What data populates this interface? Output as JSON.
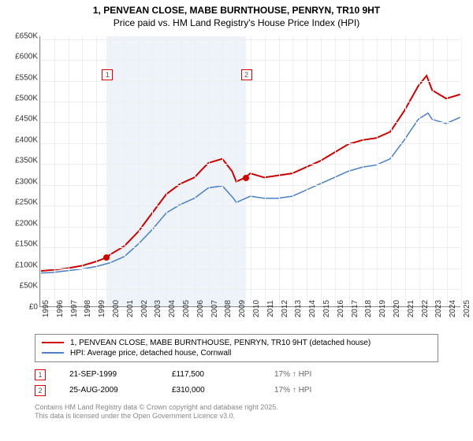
{
  "title": "1, PENVEAN CLOSE, MABE BURNTHOUSE, PENRYN, TR10 9HT",
  "subtitle": "Price paid vs. HM Land Registry's House Price Index (HPI)",
  "chart": {
    "type": "line",
    "background_color": "#ffffff",
    "grid_color": "#eeeeee",
    "shade_color": "#e6eef7",
    "ylim": [
      0,
      650000
    ],
    "ytick_step": 50000,
    "yticks": [
      "£0",
      "£50K",
      "£100K",
      "£150K",
      "£200K",
      "£250K",
      "£300K",
      "£350K",
      "£400K",
      "£450K",
      "£500K",
      "£550K",
      "£600K",
      "£650K"
    ],
    "x_min": 1995,
    "x_max": 2025,
    "xticks": [
      1995,
      1996,
      1997,
      1998,
      1999,
      2000,
      2001,
      2002,
      2003,
      2004,
      2005,
      2006,
      2007,
      2008,
      2009,
      2010,
      2011,
      2012,
      2013,
      2014,
      2015,
      2016,
      2017,
      2018,
      2019,
      2020,
      2021,
      2022,
      2023,
      2024,
      2025
    ],
    "series": [
      {
        "name": "price-paid",
        "label": "1, PENVEAN CLOSE, MABE BURNTHOUSE, PENRYN, TR10 9HT (detached house)",
        "color": "#cc0000",
        "line_width": 2,
        "data": [
          [
            1995,
            85000
          ],
          [
            1996,
            88000
          ],
          [
            1997,
            92000
          ],
          [
            1998,
            98000
          ],
          [
            1999,
            108000
          ],
          [
            1999.72,
            117500
          ],
          [
            2000,
            125000
          ],
          [
            2001,
            145000
          ],
          [
            2002,
            180000
          ],
          [
            2003,
            225000
          ],
          [
            2004,
            270000
          ],
          [
            2005,
            295000
          ],
          [
            2006,
            310000
          ],
          [
            2007,
            345000
          ],
          [
            2008,
            355000
          ],
          [
            2008.7,
            325000
          ],
          [
            2009,
            300000
          ],
          [
            2009.65,
            310000
          ],
          [
            2010,
            320000
          ],
          [
            2011,
            310000
          ],
          [
            2012,
            315000
          ],
          [
            2013,
            320000
          ],
          [
            2014,
            335000
          ],
          [
            2015,
            350000
          ],
          [
            2016,
            370000
          ],
          [
            2017,
            390000
          ],
          [
            2018,
            400000
          ],
          [
            2019,
            405000
          ],
          [
            2020,
            420000
          ],
          [
            2021,
            470000
          ],
          [
            2022,
            530000
          ],
          [
            2022.6,
            555000
          ],
          [
            2023,
            520000
          ],
          [
            2024,
            500000
          ],
          [
            2025,
            510000
          ]
        ]
      },
      {
        "name": "hpi",
        "label": "HPI: Average price, detached house, Cornwall",
        "color": "#4a7fc4",
        "line_width": 1.5,
        "data": [
          [
            1995,
            80000
          ],
          [
            1996,
            82000
          ],
          [
            1997,
            86000
          ],
          [
            1998,
            90000
          ],
          [
            1999,
            96000
          ],
          [
            2000,
            105000
          ],
          [
            2001,
            120000
          ],
          [
            2002,
            150000
          ],
          [
            2003,
            185000
          ],
          [
            2004,
            225000
          ],
          [
            2005,
            245000
          ],
          [
            2006,
            260000
          ],
          [
            2007,
            285000
          ],
          [
            2008,
            290000
          ],
          [
            2008.8,
            260000
          ],
          [
            2009,
            250000
          ],
          [
            2010,
            265000
          ],
          [
            2011,
            260000
          ],
          [
            2012,
            260000
          ],
          [
            2013,
            265000
          ],
          [
            2014,
            280000
          ],
          [
            2015,
            295000
          ],
          [
            2016,
            310000
          ],
          [
            2017,
            325000
          ],
          [
            2018,
            335000
          ],
          [
            2019,
            340000
          ],
          [
            2020,
            355000
          ],
          [
            2021,
            400000
          ],
          [
            2022,
            450000
          ],
          [
            2022.7,
            465000
          ],
          [
            2023,
            450000
          ],
          [
            2024,
            440000
          ],
          [
            2025,
            455000
          ]
        ]
      }
    ],
    "markers": [
      {
        "id": "1",
        "x": 1999.72,
        "y": 117500,
        "color": "#cc0000",
        "box_x": 1999.4,
        "box_y": 570000
      },
      {
        "id": "2",
        "x": 2009.65,
        "y": 310000,
        "color": "#cc0000",
        "box_x": 2009.3,
        "box_y": 570000
      }
    ],
    "shaded_ranges": [
      [
        1999.72,
        2009.65
      ]
    ]
  },
  "legend": {
    "items": [
      {
        "color": "#cc0000",
        "label": "1, PENVEAN CLOSE, MABE BURNTHOUSE, PENRYN, TR10 9HT (detached house)"
      },
      {
        "color": "#4a7fc4",
        "label": "HPI: Average price, detached house, Cornwall"
      }
    ]
  },
  "transactions": [
    {
      "id": "1",
      "date": "21-SEP-1999",
      "price": "£117,500",
      "delta": "17% ↑ HPI"
    },
    {
      "id": "2",
      "date": "25-AUG-2009",
      "price": "£310,000",
      "delta": "17% ↑ HPI"
    }
  ],
  "footer": {
    "line1": "Contains HM Land Registry data © Crown copyright and database right 2025.",
    "line2": "This data is licensed under the Open Government Licence v3.0."
  }
}
